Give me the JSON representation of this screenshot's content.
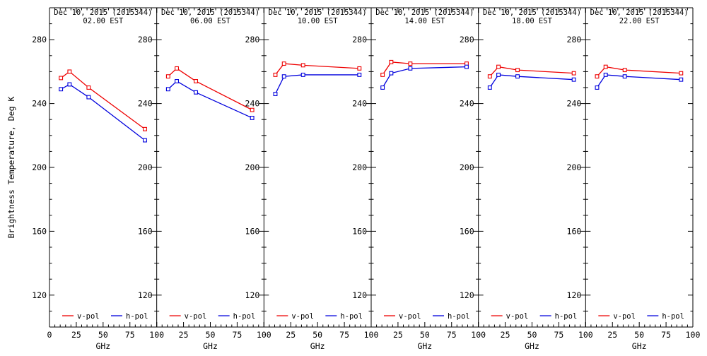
{
  "figure": {
    "ylabel": "Brightness Temperature, Deg K",
    "xlabel": "GHz",
    "colors": {
      "axis": "#000000",
      "background": "#ffffff",
      "v_pol": "#ee0000",
      "h_pol": "#0000dd"
    },
    "legend": {
      "v_label": "v-pol",
      "h_label": "h-pol",
      "position": "bottom-inside"
    }
  },
  "chart_data": [
    {
      "type": "line",
      "title": "Dec 10, 2015 (2015344)",
      "subtitle": "02.00 EST",
      "xlabel": "GHz",
      "x": [
        10.65,
        18.7,
        36.5,
        89
      ],
      "series": [
        {
          "name": "v-pol",
          "color": "#ee0000",
          "values": [
            256,
            260,
            250,
            224
          ]
        },
        {
          "name": "h-pol",
          "color": "#0000dd",
          "values": [
            249,
            252,
            244,
            217
          ]
        }
      ],
      "xlim": [
        0,
        100
      ],
      "ylim": [
        100,
        300
      ],
      "xticks": [
        0,
        25,
        50,
        75,
        100
      ],
      "yticks": [
        120,
        160,
        200,
        240,
        280
      ],
      "x_minor_step": 5,
      "y_minor_step": 10,
      "grid": false
    },
    {
      "type": "line",
      "title": "Dec 10, 2015 (2015344)",
      "subtitle": "06.00 EST",
      "xlabel": "GHz",
      "x": [
        10.65,
        18.7,
        36.5,
        89
      ],
      "series": [
        {
          "name": "v-pol",
          "color": "#ee0000",
          "values": [
            257,
            262,
            254,
            236
          ]
        },
        {
          "name": "h-pol",
          "color": "#0000dd",
          "values": [
            249,
            254,
            247,
            231
          ]
        }
      ],
      "xlim": [
        0,
        100
      ],
      "ylim": [
        100,
        300
      ],
      "xticks": [
        0,
        25,
        50,
        75,
        100
      ],
      "yticks": [
        120,
        160,
        200,
        240,
        280
      ],
      "x_minor_step": 5,
      "y_minor_step": 10,
      "grid": false
    },
    {
      "type": "line",
      "title": "Dec 10, 2015 (2015344)",
      "subtitle": "10.00 EST",
      "xlabel": "GHz",
      "x": [
        10.65,
        18.7,
        36.5,
        89
      ],
      "series": [
        {
          "name": "v-pol",
          "color": "#ee0000",
          "values": [
            258,
            265,
            264,
            262
          ]
        },
        {
          "name": "h-pol",
          "color": "#0000dd",
          "values": [
            246,
            257,
            258,
            258
          ]
        }
      ],
      "xlim": [
        0,
        100
      ],
      "ylim": [
        100,
        300
      ],
      "xticks": [
        0,
        25,
        50,
        75,
        100
      ],
      "yticks": [
        120,
        160,
        200,
        240,
        280
      ],
      "x_minor_step": 5,
      "y_minor_step": 10,
      "grid": false
    },
    {
      "type": "line",
      "title": "Dec 10, 2015 (2015344)",
      "subtitle": "14.00 EST",
      "xlabel": "GHz",
      "x": [
        10.65,
        18.7,
        36.5,
        89
      ],
      "series": [
        {
          "name": "v-pol",
          "color": "#ee0000",
          "values": [
            258,
            266,
            265,
            265
          ]
        },
        {
          "name": "h-pol",
          "color": "#0000dd",
          "values": [
            250,
            259,
            262,
            263
          ]
        }
      ],
      "xlim": [
        0,
        100
      ],
      "ylim": [
        100,
        300
      ],
      "xticks": [
        0,
        25,
        50,
        75,
        100
      ],
      "yticks": [
        120,
        160,
        200,
        240,
        280
      ],
      "x_minor_step": 5,
      "y_minor_step": 10,
      "grid": false
    },
    {
      "type": "line",
      "title": "Dec 10, 2015 (2015344)",
      "subtitle": "18.00 EST",
      "xlabel": "GHz",
      "x": [
        10.65,
        18.7,
        36.5,
        89
      ],
      "series": [
        {
          "name": "v-pol",
          "color": "#ee0000",
          "values": [
            257,
            263,
            261,
            259
          ]
        },
        {
          "name": "h-pol",
          "color": "#0000dd",
          "values": [
            250,
            258,
            257,
            255
          ]
        }
      ],
      "xlim": [
        0,
        100
      ],
      "ylim": [
        100,
        300
      ],
      "xticks": [
        0,
        25,
        50,
        75,
        100
      ],
      "yticks": [
        120,
        160,
        200,
        240,
        280
      ],
      "x_minor_step": 5,
      "y_minor_step": 10,
      "grid": false
    },
    {
      "type": "line",
      "title": "Dec 10, 2015 (2015344)",
      "subtitle": "22.00 EST",
      "xlabel": "GHz",
      "x": [
        10.65,
        18.7,
        36.5,
        89
      ],
      "series": [
        {
          "name": "v-pol",
          "color": "#ee0000",
          "values": [
            257,
            263,
            261,
            259
          ]
        },
        {
          "name": "h-pol",
          "color": "#0000dd",
          "values": [
            250,
            258,
            257,
            255
          ]
        }
      ],
      "xlim": [
        0,
        100
      ],
      "ylim": [
        100,
        300
      ],
      "xticks": [
        0,
        25,
        50,
        75,
        100
      ],
      "yticks": [
        120,
        160,
        200,
        240,
        280
      ],
      "x_minor_step": 5,
      "y_minor_step": 10,
      "grid": false
    }
  ]
}
